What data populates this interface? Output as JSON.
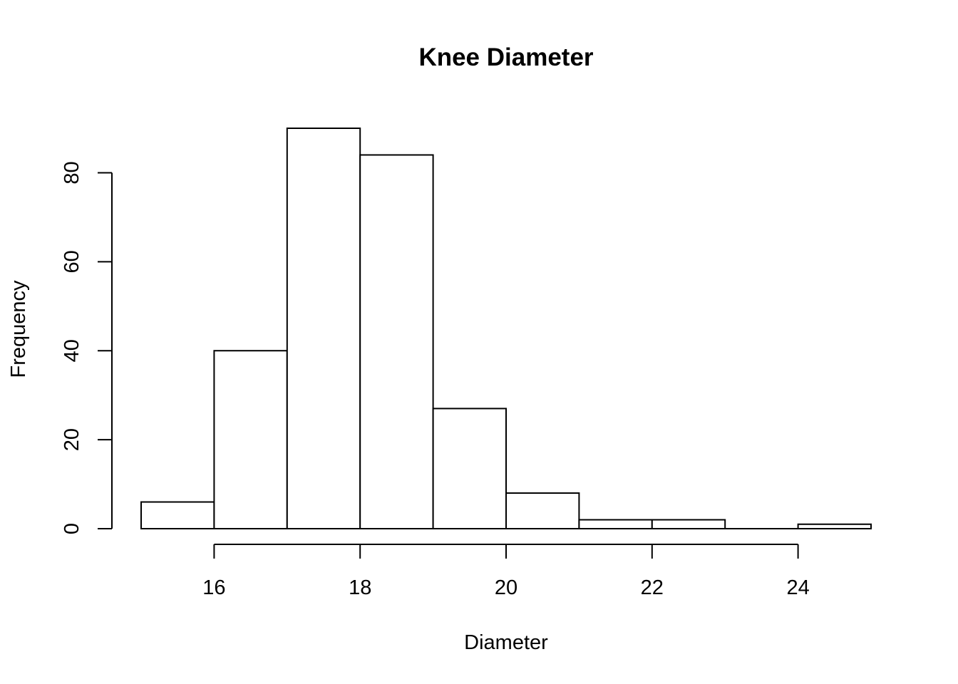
{
  "chart_data": {
    "type": "bar",
    "subtype": "histogram",
    "title": "Knee Diameter",
    "xlabel": "Diameter",
    "ylabel": "Frequency",
    "bins": [
      {
        "start": 15,
        "end": 16,
        "count": 6
      },
      {
        "start": 16,
        "end": 17,
        "count": 40
      },
      {
        "start": 17,
        "end": 18,
        "count": 90
      },
      {
        "start": 18,
        "end": 19,
        "count": 84
      },
      {
        "start": 19,
        "end": 20,
        "count": 27
      },
      {
        "start": 20,
        "end": 21,
        "count": 8
      },
      {
        "start": 21,
        "end": 22,
        "count": 2
      },
      {
        "start": 22,
        "end": 23,
        "count": 2
      },
      {
        "start": 23,
        "end": 24,
        "count": 0
      },
      {
        "start": 24,
        "end": 25,
        "count": 1
      }
    ],
    "xlim": [
      15,
      25
    ],
    "ylim": [
      0,
      90
    ],
    "x_ticks": [
      16,
      18,
      20,
      22,
      24
    ],
    "y_ticks": [
      0,
      20,
      40,
      60,
      80
    ],
    "grid": false,
    "legend": "none",
    "colors": {
      "bar_fill": "#ffffff",
      "bar_stroke": "#000000"
    }
  }
}
